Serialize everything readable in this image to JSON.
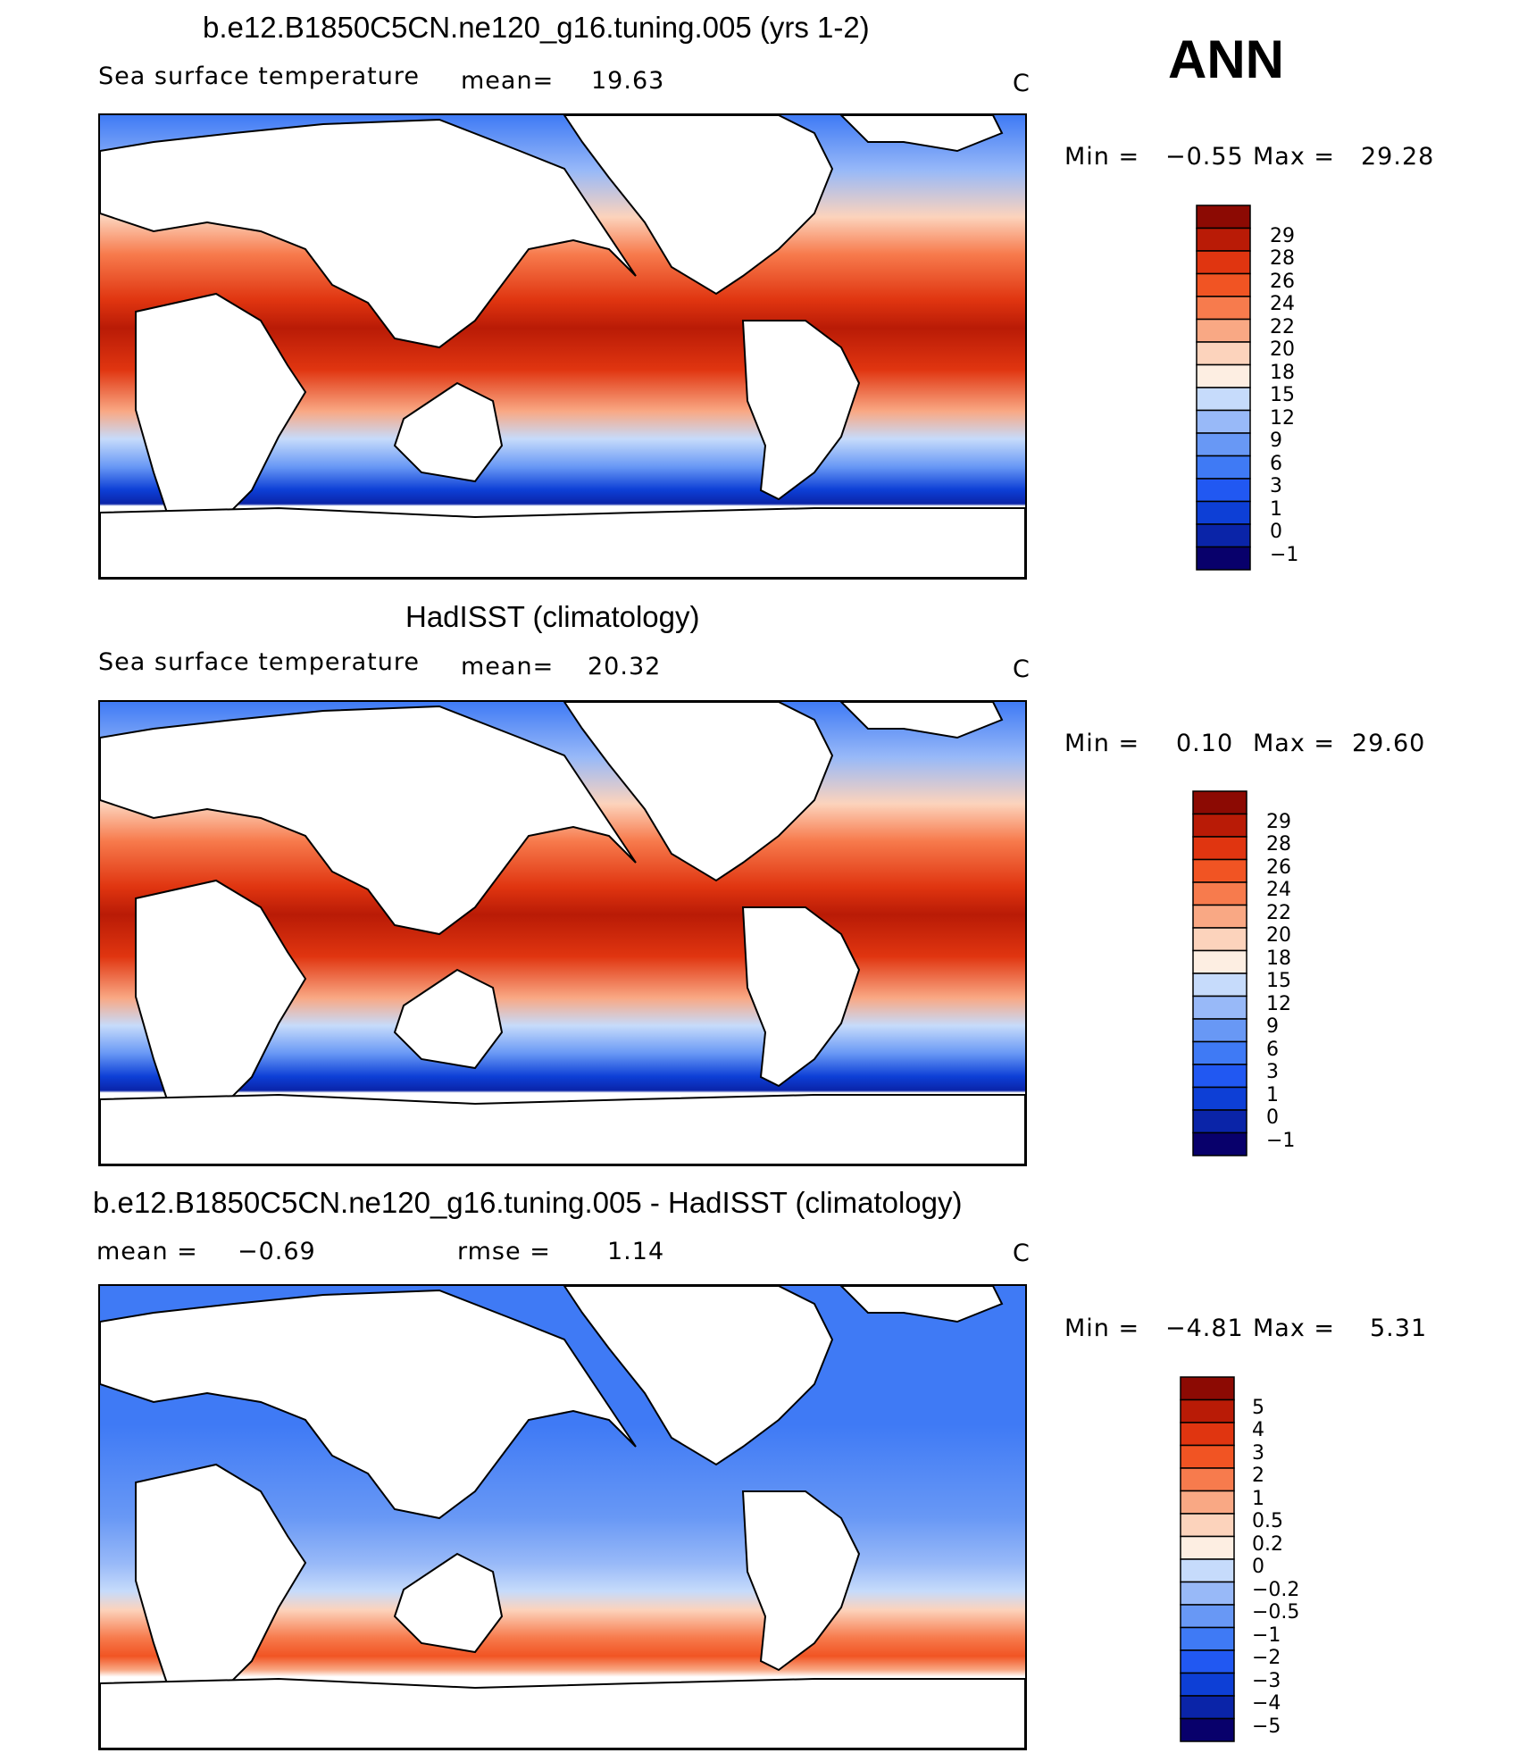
{
  "season": "ANN",
  "colors": {
    "sst_scale": [
      "#08006b",
      "#0a24a8",
      "#0d3fd6",
      "#2158f2",
      "#3f7af5",
      "#6898f5",
      "#98b9f8",
      "#c6dbfb",
      "#e2eefb",
      "#fdeee2",
      "#fcd3bc",
      "#f9a884",
      "#f77b4d",
      "#f15423",
      "#e03510",
      "#b91b06",
      "#8c0a03"
    ],
    "diff_scale": [
      "#08006b",
      "#0a24a8",
      "#0d3fd6",
      "#2158f2",
      "#3f7af5",
      "#6898f5",
      "#98b9f8",
      "#c6dbfb",
      "#e2eefb",
      "#fdeee2",
      "#fcd3bc",
      "#f9a884",
      "#f77b4d",
      "#f15423",
      "#e03510",
      "#b91b06",
      "#8c0a03"
    ]
  },
  "chart_data": [
    {
      "type": "heatmap",
      "title": "b.e12.B1850C5CN.ne120_g16.tuning.005 (yrs 1-2)",
      "subtitle": "Sea surface temperature",
      "mean_label": "mean=",
      "mean": "19.63",
      "units": "C",
      "min_label": "Min =",
      "min": "−0.55",
      "max_label": "Max =",
      "max": "29.28",
      "colorbar_levels": [
        "29",
        "28",
        "26",
        "24",
        "22",
        "20",
        "18",
        "15",
        "12",
        "9",
        "6",
        "3",
        "1",
        "0",
        "−1"
      ]
    },
    {
      "type": "heatmap",
      "title": "HadISST (climatology)",
      "subtitle": "Sea surface temperature",
      "mean_label": "mean=",
      "mean": "20.32",
      "units": "C",
      "min_label": "Min =",
      "min": "0.10",
      "max_label": "Max =",
      "max": "29.60",
      "colorbar_levels": [
        "29",
        "28",
        "26",
        "24",
        "22",
        "20",
        "18",
        "15",
        "12",
        "9",
        "6",
        "3",
        "1",
        "0",
        "−1"
      ]
    },
    {
      "type": "heatmap",
      "title": "b.e12.B1850C5CN.ne120_g16.tuning.005 - HadISST (climatology)",
      "mean_label": "mean =",
      "mean": "−0.69",
      "rmse_label": "rmse =",
      "rmse": "1.14",
      "units": "C",
      "min_label": "Min =",
      "min": "−4.81",
      "max_label": "Max =",
      "max": "5.31",
      "colorbar_levels": [
        "5",
        "4",
        "3",
        "2",
        "1",
        "0.5",
        "0.2",
        "0",
        "−0.2",
        "−0.5",
        "−1",
        "−2",
        "−3",
        "−4",
        "−5"
      ]
    }
  ]
}
